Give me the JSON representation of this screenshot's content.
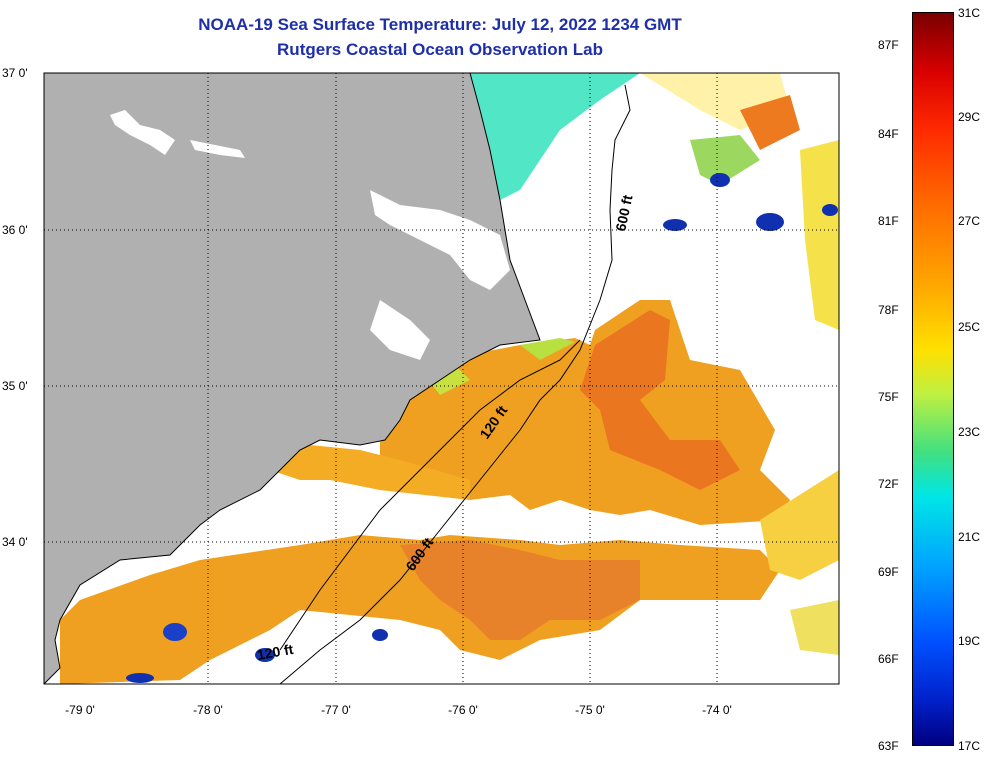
{
  "title_line1": "NOAA-19 Sea Surface Temperature:  July 12, 2022 1234 GMT",
  "title_line2": "Rutgers Coastal Ocean Observation Lab",
  "lon_labels": [
    "-79 0'",
    "-78 0'",
    "-77 0'",
    "-76 0'",
    "-75 0'",
    "-74 0'"
  ],
  "lat_labels": [
    "37 0'",
    "36 0'",
    "35 0'",
    "34 0'"
  ],
  "isobath_labels": [
    "600 ft",
    "120 ft",
    "600 ft",
    "120 ft"
  ],
  "colorbar": {
    "fahrenheit": [
      "87F",
      "84F",
      "81F",
      "78F",
      "75F",
      "72F",
      "69F",
      "66F",
      "63F"
    ],
    "celsius": [
      "31C",
      "29C",
      "27C",
      "25C",
      "23C",
      "21C",
      "19C",
      "17C"
    ]
  },
  "colors": {
    "land": "#b0b0b0",
    "title": "#1f2fa8",
    "warm": "#f0a020",
    "hot": "#e86818",
    "cool": "#48e0c0",
    "cold": "#1030b0"
  }
}
